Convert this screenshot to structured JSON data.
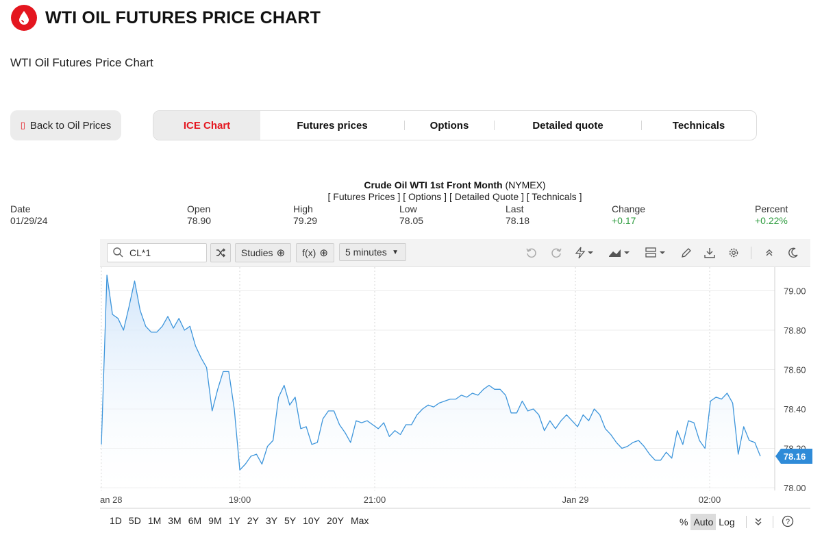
{
  "header": {
    "title": "WTI OIL FUTURES PRICE CHART",
    "subtitle": "WTI Oil Futures Price Chart",
    "logo_icon": "oil-drop-icon"
  },
  "back_button": {
    "label": "Back to Oil Prices",
    "icon": "chevron-left-icon"
  },
  "tabs": [
    {
      "label": "ICE Chart",
      "active": true
    },
    {
      "label": "Futures prices",
      "active": false
    },
    {
      "label": "Options",
      "active": false
    },
    {
      "label": "Detailed quote",
      "active": false
    },
    {
      "label": "Technicals",
      "active": false
    }
  ],
  "quote": {
    "name": "Crude Oil WTI 1st Front Month",
    "exchange": "(NYMEX)",
    "links": [
      "[ Futures Prices ]",
      "[ Options ]",
      "[ Detailed Quote ]",
      "[ Technicals ]"
    ],
    "fields": {
      "date": {
        "label": "Date",
        "value": "01/29/24"
      },
      "open": {
        "label": "Open",
        "value": "78.90"
      },
      "high": {
        "label": "High",
        "value": "79.29"
      },
      "low": {
        "label": "Low",
        "value": "78.05"
      },
      "last": {
        "label": "Last",
        "value": "78.18"
      },
      "change": {
        "label": "Change",
        "value": "+0.17"
      },
      "percent": {
        "label": "Percent",
        "value": "+0.22%"
      }
    }
  },
  "toolbar": {
    "symbol": "CL*1",
    "studies_label": "Studies",
    "fx_label": "f(x)",
    "interval": "5 minutes",
    "icons": [
      "undo-icon",
      "redo-icon",
      "lightning-icon",
      "chart-type-icon",
      "layout-icon",
      "pencil-icon",
      "download-icon",
      "gear-icon",
      "collapse-icon",
      "dark-mode-icon"
    ]
  },
  "bottom": {
    "ranges": [
      "1D",
      "5D",
      "1M",
      "3M",
      "6M",
      "9M",
      "1Y",
      "2Y",
      "3Y",
      "5Y",
      "10Y",
      "20Y",
      "Max"
    ],
    "scale_options": [
      {
        "label": "%",
        "active": false
      },
      {
        "label": "Auto",
        "active": true
      },
      {
        "label": "Log",
        "active": false
      }
    ]
  },
  "colors": {
    "accent": "#e4161f",
    "line": "#3d95db",
    "area": "#d6e9fb",
    "positive": "#2e9c3f"
  },
  "chart_data": {
    "type": "area",
    "x_ticks": [
      "an 28",
      "19:00",
      "21:00",
      "Jan 29",
      "02:00"
    ],
    "y_ticks": [
      "79.00",
      "78.80",
      "78.60",
      "78.40",
      "78.20",
      "78.00"
    ],
    "ylim": [
      78.0,
      79.12
    ],
    "last_value_label": "78.16",
    "grid": true,
    "series": [
      {
        "values": [
          78.22,
          79.08,
          78.88,
          78.86,
          78.8,
          78.92,
          79.05,
          78.9,
          78.82,
          78.79,
          78.79,
          78.82,
          78.87,
          78.81,
          78.86,
          78.8,
          78.82,
          78.72,
          78.66,
          78.61,
          78.39,
          78.5,
          78.59,
          78.59,
          78.4,
          78.09,
          78.12,
          78.16,
          78.17,
          78.12,
          78.21,
          78.24,
          78.46,
          78.52,
          78.42,
          78.46,
          78.3,
          78.31,
          78.22,
          78.23,
          78.35,
          78.39,
          78.39,
          78.32,
          78.28,
          78.23,
          78.34,
          78.33,
          78.34,
          78.32,
          78.3,
          78.33,
          78.26,
          78.29,
          78.27,
          78.32,
          78.32,
          78.37,
          78.4,
          78.42,
          78.41,
          78.43,
          78.44,
          78.45,
          78.45,
          78.47,
          78.46,
          78.48,
          78.47,
          78.5,
          78.52,
          78.5,
          78.5,
          78.47,
          78.38,
          78.38,
          78.44,
          78.39,
          78.4,
          78.37,
          78.29,
          78.34,
          78.3,
          78.34,
          78.37,
          78.34,
          78.31,
          78.37,
          78.34,
          78.4,
          78.37,
          78.3,
          78.27,
          78.23,
          78.2,
          78.21,
          78.23,
          78.24,
          78.21,
          78.17,
          78.14,
          78.14,
          78.18,
          78.15,
          78.29,
          78.22,
          78.34,
          78.33,
          78.24,
          78.2,
          78.44,
          78.46,
          78.45,
          78.48,
          78.43,
          78.17,
          78.31,
          78.24,
          78.23,
          78.16
        ]
      }
    ]
  }
}
